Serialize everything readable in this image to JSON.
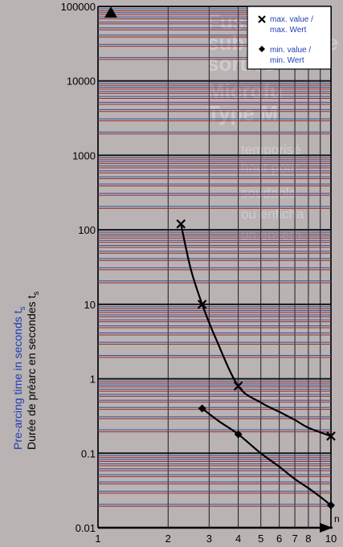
{
  "chart_data": {
    "type": "line",
    "title": "",
    "xlabel": "n",
    "xscale": "log",
    "yscale": "log",
    "xlim": [
      1,
      10
    ],
    "ylim": [
      0.01,
      100000
    ],
    "xticks": [
      1,
      2,
      3,
      4,
      5,
      6,
      7,
      8,
      10
    ],
    "yticks": [
      0.01,
      0.1,
      1,
      10,
      100,
      1000,
      10000,
      100000
    ],
    "ytick_labels": [
      "0.01",
      "0.1",
      "1",
      "10",
      "100",
      "1000",
      "10000",
      "100000"
    ],
    "ylabel_lines": [
      "Pre-arcing time in seconds t",
      "Durée de préarc en secondes t"
    ],
    "ylabel_subscript": "s",
    "grid": true,
    "legend_position": "top-right",
    "series": [
      {
        "name": "max. value / max. Wert",
        "marker": "x",
        "markers": [
          [
            2.27,
            120
          ],
          [
            2.8,
            10
          ],
          [
            4,
            0.8
          ],
          [
            10,
            0.17
          ]
        ],
        "curve": [
          [
            2.27,
            120
          ],
          [
            2.5,
            30
          ],
          [
            2.8,
            10
          ],
          [
            3.2,
            3.5
          ],
          [
            4,
            0.8
          ],
          [
            5,
            0.48
          ],
          [
            6,
            0.36
          ],
          [
            7,
            0.28
          ],
          [
            8,
            0.22
          ],
          [
            10,
            0.17
          ]
        ]
      },
      {
        "name": "min. value / min. Wert",
        "marker": "diamond",
        "markers": [
          [
            2.8,
            0.4
          ],
          [
            4,
            0.18
          ],
          [
            10,
            0.02
          ]
        ],
        "curve": [
          [
            2.8,
            0.4
          ],
          [
            3.3,
            0.27
          ],
          [
            4,
            0.18
          ],
          [
            5,
            0.1
          ],
          [
            6,
            0.066
          ],
          [
            7,
            0.045
          ],
          [
            8,
            0.034
          ],
          [
            9,
            0.026
          ],
          [
            10,
            0.02
          ]
        ]
      }
    ]
  },
  "legend": {
    "max_line1": "max. value /",
    "max_line2": "max. Wert",
    "min_line1": "min. value /",
    "min_line2": "min. Wert"
  },
  "background_text": {
    "large": [
      "Fusible",
      "subminiature",
      "sorties",
      "Microfu",
      "Type M"
    ],
    "medium": [
      "temporisé",
      "haut pour",
      "soudable",
      "ou enficha",
      "un ensem"
    ]
  },
  "colors": {
    "background": "#b9b3b4",
    "grid_red": "#9b2d2a",
    "grid_blue": "#3c4d92",
    "curve": "#000000",
    "ylabel_blue": "#1f3fb0"
  }
}
